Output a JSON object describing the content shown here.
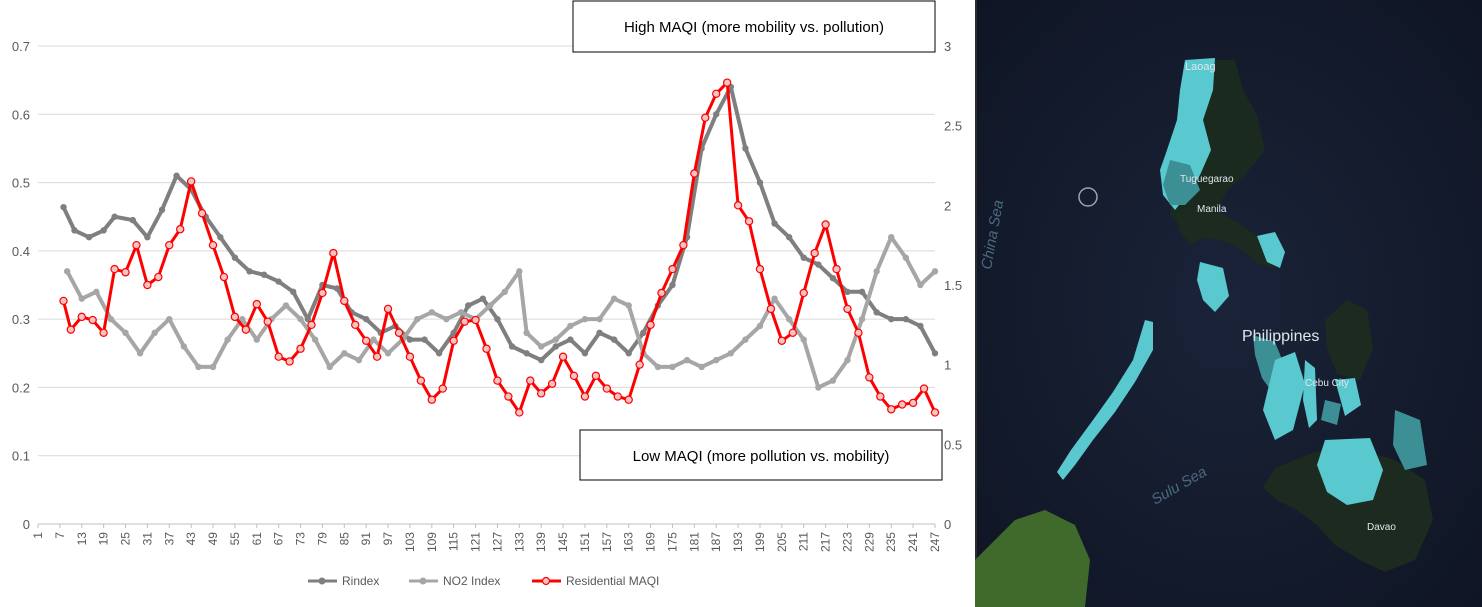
{
  "chart_data": {
    "type": "line",
    "x_start": 1,
    "x_end": 247,
    "x_tick_step": 6,
    "y_left_range": [
      0,
      0.7
    ],
    "y_left_ticks": [
      "0",
      "0.1",
      "0.2",
      "0.3",
      "0.4",
      "0.5",
      "0.6",
      "0.7"
    ],
    "y_right_range": [
      0,
      3
    ],
    "y_right_ticks": [
      "0",
      "0.5",
      "1",
      "1.5",
      "2",
      "2.5",
      "3"
    ],
    "grid": true,
    "legend_position": "bottom",
    "series": [
      {
        "name": "Rindex",
        "axis": "left",
        "color": "#7f7f7f",
        "points": [
          [
            8,
            0.464
          ],
          [
            11,
            0.43
          ],
          [
            15,
            0.42
          ],
          [
            19,
            0.43
          ],
          [
            22,
            0.45
          ],
          [
            27,
            0.445
          ],
          [
            31,
            0.42
          ],
          [
            35,
            0.46
          ],
          [
            39,
            0.51
          ],
          [
            43,
            0.49
          ],
          [
            47,
            0.45
          ],
          [
            51,
            0.42
          ],
          [
            55,
            0.39
          ],
          [
            59,
            0.37
          ],
          [
            63,
            0.365
          ],
          [
            67,
            0.355
          ],
          [
            71,
            0.34
          ],
          [
            75,
            0.3
          ],
          [
            79,
            0.35
          ],
          [
            83,
            0.345
          ],
          [
            87,
            0.31
          ],
          [
            91,
            0.3
          ],
          [
            95,
            0.28
          ],
          [
            99,
            0.29
          ],
          [
            103,
            0.27
          ],
          [
            107,
            0.27
          ],
          [
            111,
            0.25
          ],
          [
            115,
            0.28
          ],
          [
            119,
            0.32
          ],
          [
            123,
            0.33
          ],
          [
            127,
            0.3
          ],
          [
            131,
            0.26
          ],
          [
            135,
            0.25
          ],
          [
            139,
            0.24
          ],
          [
            143,
            0.26
          ],
          [
            147,
            0.27
          ],
          [
            151,
            0.25
          ],
          [
            155,
            0.28
          ],
          [
            159,
            0.27
          ],
          [
            163,
            0.25
          ],
          [
            167,
            0.28
          ],
          [
            171,
            0.32
          ],
          [
            175,
            0.35
          ],
          [
            179,
            0.42
          ],
          [
            183,
            0.55
          ],
          [
            187,
            0.6
          ],
          [
            191,
            0.64
          ],
          [
            195,
            0.55
          ],
          [
            199,
            0.5
          ],
          [
            203,
            0.44
          ],
          [
            207,
            0.42
          ],
          [
            211,
            0.39
          ],
          [
            215,
            0.38
          ],
          [
            219,
            0.36
          ],
          [
            223,
            0.34
          ],
          [
            227,
            0.34
          ],
          [
            231,
            0.31
          ],
          [
            235,
            0.3
          ],
          [
            239,
            0.3
          ],
          [
            243,
            0.29
          ],
          [
            247,
            0.25
          ]
        ]
      },
      {
        "name": "NO2 Index",
        "axis": "left",
        "color": "#a6a6a6",
        "points": [
          [
            9,
            0.37
          ],
          [
            13,
            0.33
          ],
          [
            17,
            0.34
          ],
          [
            21,
            0.3
          ],
          [
            25,
            0.28
          ],
          [
            29,
            0.25
          ],
          [
            33,
            0.28
          ],
          [
            37,
            0.3
          ],
          [
            41,
            0.26
          ],
          [
            45,
            0.23
          ],
          [
            49,
            0.23
          ],
          [
            53,
            0.27
          ],
          [
            57,
            0.3
          ],
          [
            61,
            0.27
          ],
          [
            65,
            0.3
          ],
          [
            69,
            0.32
          ],
          [
            73,
            0.3
          ],
          [
            77,
            0.27
          ],
          [
            81,
            0.23
          ],
          [
            85,
            0.25
          ],
          [
            89,
            0.24
          ],
          [
            93,
            0.27
          ],
          [
            97,
            0.25
          ],
          [
            101,
            0.27
          ],
          [
            105,
            0.3
          ],
          [
            109,
            0.31
          ],
          [
            113,
            0.3
          ],
          [
            117,
            0.31
          ],
          [
            121,
            0.3
          ],
          [
            125,
            0.32
          ],
          [
            129,
            0.34
          ],
          [
            133,
            0.37
          ],
          [
            135,
            0.28
          ],
          [
            139,
            0.26
          ],
          [
            143,
            0.27
          ],
          [
            147,
            0.29
          ],
          [
            151,
            0.3
          ],
          [
            155,
            0.3
          ],
          [
            159,
            0.33
          ],
          [
            163,
            0.32
          ],
          [
            167,
            0.25
          ],
          [
            171,
            0.23
          ],
          [
            175,
            0.23
          ],
          [
            179,
            0.24
          ],
          [
            183,
            0.23
          ],
          [
            187,
            0.24
          ],
          [
            191,
            0.25
          ],
          [
            195,
            0.27
          ],
          [
            199,
            0.29
          ],
          [
            203,
            0.33
          ],
          [
            207,
            0.3
          ],
          [
            211,
            0.27
          ],
          [
            215,
            0.2
          ],
          [
            219,
            0.21
          ],
          [
            223,
            0.24
          ],
          [
            227,
            0.3
          ],
          [
            231,
            0.37
          ],
          [
            235,
            0.42
          ],
          [
            239,
            0.39
          ],
          [
            243,
            0.35
          ],
          [
            247,
            0.37
          ]
        ]
      },
      {
        "name": "Residential MAQI",
        "axis": "right",
        "color": "#ff0000",
        "points": [
          [
            8,
            1.4
          ],
          [
            10,
            1.22
          ],
          [
            13,
            1.3
          ],
          [
            16,
            1.28
          ],
          [
            19,
            1.2
          ],
          [
            22,
            1.6
          ],
          [
            25,
            1.58
          ],
          [
            28,
            1.75
          ],
          [
            31,
            1.5
          ],
          [
            34,
            1.55
          ],
          [
            37,
            1.75
          ],
          [
            40,
            1.85
          ],
          [
            43,
            2.15
          ],
          [
            46,
            1.95
          ],
          [
            49,
            1.75
          ],
          [
            52,
            1.55
          ],
          [
            55,
            1.3
          ],
          [
            58,
            1.22
          ],
          [
            61,
            1.38
          ],
          [
            64,
            1.27
          ],
          [
            67,
            1.05
          ],
          [
            70,
            1.02
          ],
          [
            73,
            1.1
          ],
          [
            76,
            1.25
          ],
          [
            79,
            1.45
          ],
          [
            82,
            1.7
          ],
          [
            85,
            1.4
          ],
          [
            88,
            1.25
          ],
          [
            91,
            1.15
          ],
          [
            94,
            1.05
          ],
          [
            97,
            1.35
          ],
          [
            100,
            1.2
          ],
          [
            103,
            1.05
          ],
          [
            106,
            0.9
          ],
          [
            109,
            0.78
          ],
          [
            112,
            0.85
          ],
          [
            115,
            1.15
          ],
          [
            118,
            1.27
          ],
          [
            121,
            1.28
          ],
          [
            124,
            1.1
          ],
          [
            127,
            0.9
          ],
          [
            130,
            0.8
          ],
          [
            133,
            0.7
          ],
          [
            136,
            0.9
          ],
          [
            139,
            0.82
          ],
          [
            142,
            0.88
          ],
          [
            145,
            1.05
          ],
          [
            148,
            0.93
          ],
          [
            151,
            0.8
          ],
          [
            154,
            0.93
          ],
          [
            157,
            0.85
          ],
          [
            160,
            0.8
          ],
          [
            163,
            0.78
          ],
          [
            166,
            1.0
          ],
          [
            169,
            1.25
          ],
          [
            172,
            1.45
          ],
          [
            175,
            1.6
          ],
          [
            178,
            1.75
          ],
          [
            181,
            2.2
          ],
          [
            184,
            2.55
          ],
          [
            187,
            2.7
          ],
          [
            190,
            2.77
          ],
          [
            193,
            2.0
          ],
          [
            196,
            1.9
          ],
          [
            199,
            1.6
          ],
          [
            202,
            1.35
          ],
          [
            205,
            1.15
          ],
          [
            208,
            1.2
          ],
          [
            211,
            1.45
          ],
          [
            214,
            1.7
          ],
          [
            217,
            1.88
          ],
          [
            220,
            1.6
          ],
          [
            223,
            1.35
          ],
          [
            226,
            1.2
          ],
          [
            229,
            0.92
          ],
          [
            232,
            0.8
          ],
          [
            235,
            0.72
          ],
          [
            238,
            0.75
          ],
          [
            241,
            0.76
          ],
          [
            244,
            0.85
          ],
          [
            247,
            0.7
          ]
        ]
      }
    ],
    "annotations": [
      {
        "text": "High MAQI (more mobility vs. pollution)"
      },
      {
        "text": "Low MAQI (more pollution vs. mobility)"
      }
    ]
  },
  "map": {
    "labels": {
      "laoag": "Laoag",
      "tuguegarao": "Tuguegarao",
      "manila": "Manila",
      "philippines": "Philippines",
      "cebu": "Cebu City",
      "davao": "Davao",
      "sulu_sea": "Sulu Sea",
      "china_sea": "China Sea"
    },
    "colors": {
      "ocean": "#141b2e",
      "highlight": "#59c9cf",
      "highlight_dim": "#3c8f95",
      "dark_land": "#1c2a20",
      "green_land": "#3f6a2c"
    }
  }
}
